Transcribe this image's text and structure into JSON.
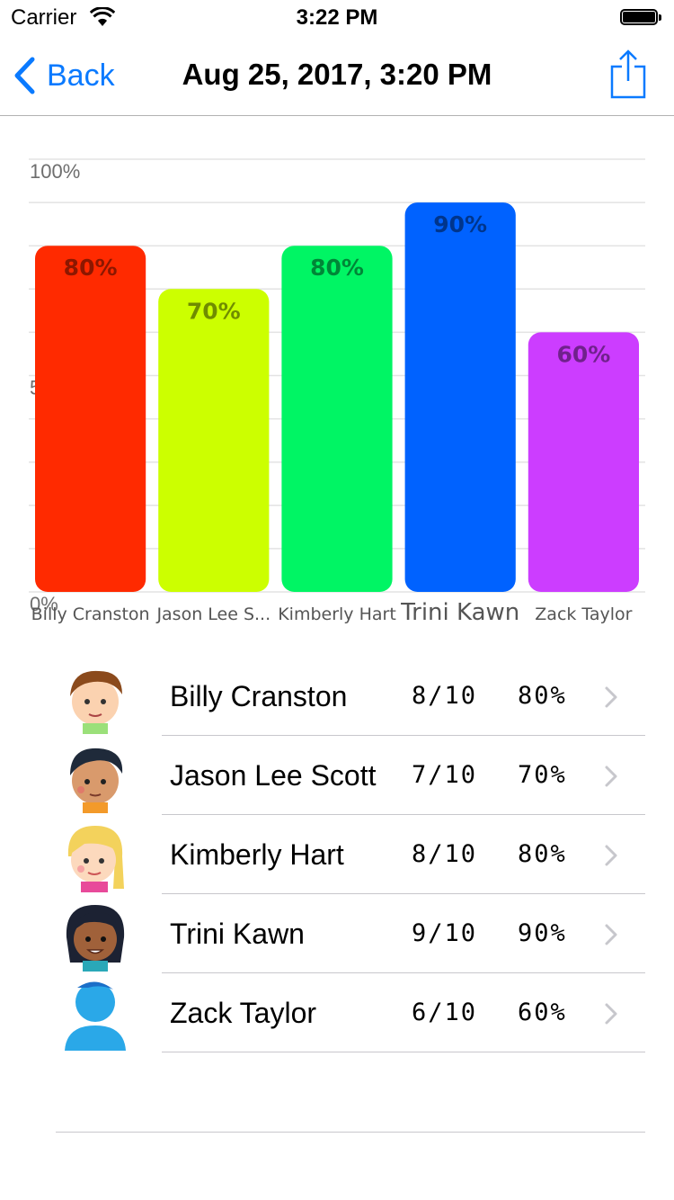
{
  "status_bar": {
    "carrier": "Carrier",
    "time": "3:22 PM"
  },
  "nav": {
    "back_label": "Back",
    "title": "Aug 25, 2017, 3:20 PM"
  },
  "chart_data": {
    "type": "bar",
    "categories": [
      "Billy Cranston",
      "Jason Lee S...",
      "Kimberly Hart",
      "Trini Kawn",
      "Zack Taylor"
    ],
    "values": [
      80,
      70,
      80,
      90,
      60
    ],
    "value_labels": [
      "80%",
      "70%",
      "80%",
      "90%",
      "60%"
    ],
    "colors": [
      "#ff2a00",
      "#ccff00",
      "#00f564",
      "#0062ff",
      "#cc3dff"
    ],
    "y_tick_labels": [
      "100%",
      "50%",
      "0%"
    ],
    "y_tick_values": [
      100,
      50,
      0
    ],
    "ylim": [
      0,
      100
    ],
    "grid": true
  },
  "students": [
    {
      "name": "Billy Cranston",
      "score": "8/10",
      "percent": "80%",
      "avatar": "boy-brown-hair-avatar"
    },
    {
      "name": "Jason Lee Scott",
      "score": "7/10",
      "percent": "70%",
      "avatar": "boy-black-hair-avatar"
    },
    {
      "name": "Kimberly Hart",
      "score": "8/10",
      "percent": "80%",
      "avatar": "girl-blonde-hair-avatar"
    },
    {
      "name": "Trini Kawn",
      "score": "9/10",
      "percent": "90%",
      "avatar": "girl-dark-hair-avatar"
    },
    {
      "name": "Zack Taylor",
      "score": "6/10",
      "percent": "60%",
      "avatar": "default-person-avatar"
    }
  ]
}
